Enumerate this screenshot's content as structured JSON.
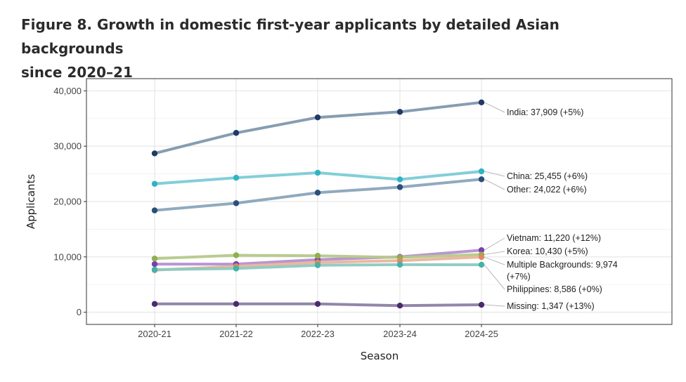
{
  "figure": {
    "title_line1": "Figure 8. Growth in domestic first-year applicants by detailed Asian backgrounds",
    "title_line2": "since 2020–21"
  },
  "chart_data": {
    "type": "line",
    "xlabel": "Season",
    "ylabel": "Applicants",
    "categories": [
      "2020-21",
      "2021-22",
      "2022-23",
      "2023-24",
      "2024-25"
    ],
    "ylim": [
      -2200,
      42200
    ],
    "yticks": [
      0,
      10000,
      20000,
      30000,
      40000
    ],
    "ytick_labels": [
      "0",
      "10,000",
      "20,000",
      "30,000",
      "40,000"
    ],
    "grid": true,
    "legend": "none (direct end labels)",
    "series": [
      {
        "label": "India: 37,909 (+5%)",
        "values": [
          28700,
          32400,
          35200,
          36200,
          37909
        ],
        "color": "#7f98ad",
        "point_color": "#1f3a66"
      },
      {
        "label": "China: 25,455 (+6%)",
        "values": [
          23200,
          24300,
          25200,
          24000,
          25455
        ],
        "color": "#7ccbd6",
        "point_color": "#2fb4c5"
      },
      {
        "label": "Other: 24,022 (+6%)",
        "values": [
          18400,
          19700,
          21600,
          22600,
          24022
        ],
        "color": "#8aa5bb",
        "point_color": "#2a4f7a"
      },
      {
        "label": "Vietnam: 11,220 (+12%)",
        "values": [
          8700,
          8700,
          9500,
          10000,
          11220
        ],
        "color": "#b58fd1",
        "point_color": "#7b3fb0"
      },
      {
        "label": "Korea: 10,430 (+5%)",
        "values": [
          9700,
          10300,
          10200,
          9900,
          10430
        ],
        "color": "#b5c98a",
        "point_color": "#8fb04e"
      },
      {
        "label": "Multiple Backgrounds: 9,974 (+7%)",
        "values": [
          7600,
          8300,
          9000,
          9300,
          9974
        ],
        "color": "#eab49a",
        "point_color": "#e08a5f"
      },
      {
        "label": "Philippines: 8,586 (+0%)",
        "values": [
          7700,
          7900,
          8500,
          8600,
          8586
        ],
        "color": "#8cc9c2",
        "point_color": "#43b3a8"
      },
      {
        "label": "Missing: 1,347 (+13%)",
        "values": [
          1500,
          1500,
          1500,
          1200,
          1347
        ],
        "color": "#8c7fa3",
        "point_color": "#4b2a6e"
      }
    ],
    "annotations": [
      {
        "series": "India",
        "line1": "India: 37,909 (+5%)",
        "line2": ""
      },
      {
        "series": "China",
        "line1": "China: 25,455 (+6%)",
        "line2": ""
      },
      {
        "series": "Other",
        "line1": "Other: 24,022 (+6%)",
        "line2": ""
      },
      {
        "series": "Vietnam",
        "line1": "Vietnam: 11,220 (+12%)",
        "line2": ""
      },
      {
        "series": "Korea",
        "line1": "Korea: 10,430 (+5%)",
        "line2": ""
      },
      {
        "series": "Multiple Backgrounds",
        "line1": "Multiple Backgrounds: 9,974",
        "line2": "(+7%)"
      },
      {
        "series": "Philippines",
        "line1": "Philippines: 8,586 (+0%)",
        "line2": ""
      },
      {
        "series": "Missing",
        "line1": "Missing: 1,347 (+13%)",
        "line2": ""
      }
    ]
  }
}
